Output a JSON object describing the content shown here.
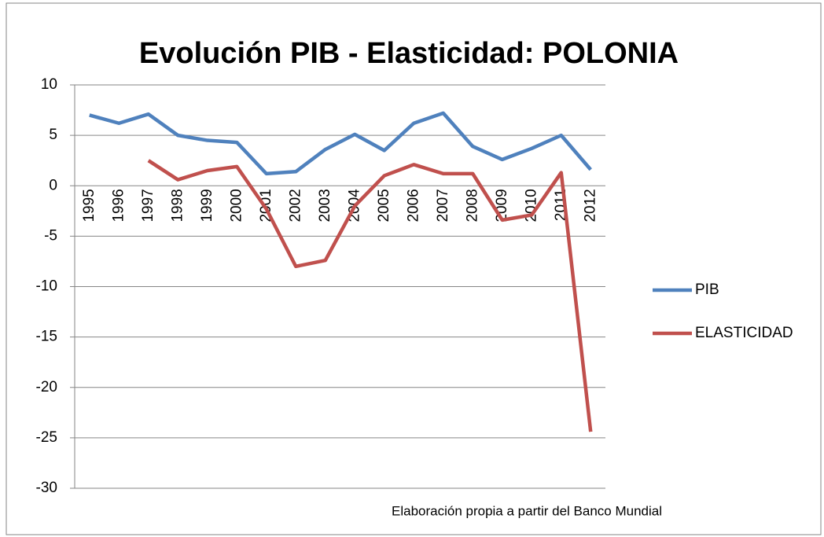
{
  "chart_data": {
    "type": "line",
    "title": "Evolución PIB - Elasticidad: POLONIA",
    "categories": [
      "1995",
      "1996",
      "1997",
      "1998",
      "1999",
      "2000",
      "2001",
      "2002",
      "2003",
      "2004",
      "2005",
      "2006",
      "2007",
      "2008",
      "2009",
      "2010",
      "2011",
      "2012"
    ],
    "series": [
      {
        "name": "PIB",
        "color": "#4f81bd",
        "values": [
          7.0,
          6.2,
          7.1,
          5.0,
          4.5,
          4.3,
          1.2,
          1.4,
          3.6,
          5.1,
          3.5,
          6.2,
          7.2,
          3.9,
          2.6,
          3.7,
          5.0,
          1.6
        ]
      },
      {
        "name": "ELASTICIDAD",
        "color": "#c0504d",
        "values": [
          null,
          null,
          2.5,
          0.6,
          1.5,
          1.9,
          -2.3,
          -8.0,
          -7.4,
          -2.0,
          1.0,
          2.1,
          1.2,
          1.2,
          -3.4,
          -2.9,
          1.3,
          -24.4
        ]
      }
    ],
    "ylim": [
      -30,
      10
    ],
    "yticks": [
      -30,
      -25,
      -20,
      -15,
      -10,
      -5,
      0,
      5,
      10
    ],
    "grid": true,
    "legend": "right",
    "annotations": [
      "Elaboración propia a partir del  Banco  Mundial"
    ]
  }
}
